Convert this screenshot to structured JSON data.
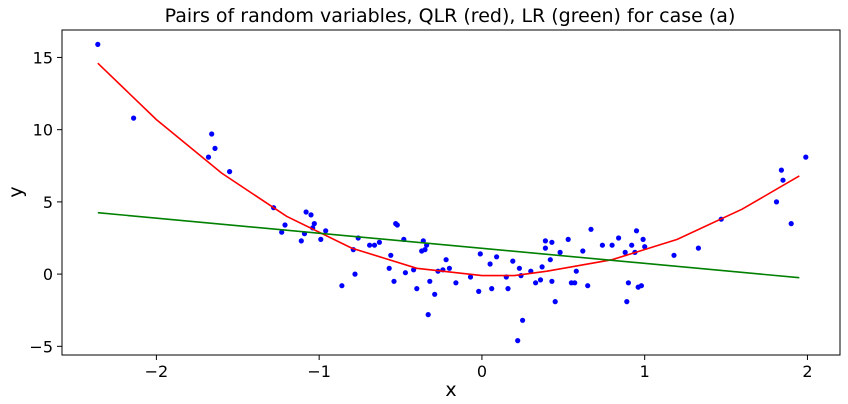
{
  "chart_data": {
    "type": "scatter",
    "title": "Pairs of random variables, QLR (red), LR (green) for case (a)",
    "xlabel": "x",
    "ylabel": "y",
    "xlim": [
      -2.58,
      2.2
    ],
    "ylim": [
      -5.6,
      16.9
    ],
    "xticks": [
      -2,
      -1,
      0,
      1,
      2
    ],
    "xtick_labels": [
      "−2",
      "−1",
      "0",
      "1",
      "2"
    ],
    "yticks": [
      -5,
      0,
      5,
      10,
      15
    ],
    "ytick_labels": [
      "−5",
      "0",
      "5",
      "10",
      "15"
    ],
    "grid": false,
    "colors": {
      "points": "#0000ff",
      "qlr": "#ff0000",
      "lr": "#008000"
    },
    "series": [
      {
        "type": "scatter",
        "x": [
          -2.36,
          -2.14,
          -1.66,
          -1.64,
          -1.68,
          -1.55,
          -1.28,
          -1.23,
          -1.21,
          -1.11,
          -1.09,
          -1.08,
          -1.04,
          -1.05,
          -1.03,
          -0.99,
          -0.96,
          -0.86,
          -0.79,
          -0.78,
          -0.76,
          -0.69,
          -0.66,
          -0.63,
          -0.57,
          -0.56,
          -0.54,
          -0.53,
          -0.52,
          -0.48,
          -0.47,
          -0.42,
          -0.4,
          -0.37,
          -0.36,
          -0.35,
          -0.34,
          -0.33,
          -0.32,
          -0.29,
          -0.27,
          -0.24,
          -0.22,
          -0.2,
          -0.16,
          -0.07,
          -0.02,
          -0.01,
          0.05,
          0.06,
          0.09,
          0.15,
          0.16,
          0.19,
          0.22,
          0.23,
          0.24,
          0.25,
          0.3,
          0.33,
          0.36,
          0.37,
          0.39,
          0.39,
          0.42,
          0.43,
          0.43,
          0.45,
          0.48,
          0.53,
          0.55,
          0.57,
          0.58,
          0.62,
          0.65,
          0.67,
          0.74,
          0.8,
          0.84,
          0.88,
          0.89,
          0.9,
          0.92,
          0.94,
          0.95,
          0.96,
          0.98,
          0.99,
          1.0,
          1.18,
          1.33,
          1.47,
          1.81,
          1.84,
          1.85,
          1.9,
          1.99
        ],
        "y": [
          15.9,
          10.8,
          9.7,
          8.7,
          8.1,
          7.1,
          4.6,
          2.9,
          3.4,
          2.3,
          2.8,
          4.3,
          3.2,
          4.1,
          3.5,
          2.4,
          3.0,
          -0.8,
          1.7,
          0.0,
          2.5,
          2.0,
          2.0,
          2.2,
          0.4,
          1.3,
          -0.5,
          3.5,
          3.4,
          2.4,
          0.1,
          0.3,
          -1.0,
          1.6,
          2.3,
          1.7,
          2.0,
          -2.8,
          -0.5,
          -1.4,
          0.2,
          0.3,
          1.0,
          0.4,
          -0.6,
          -0.2,
          -1.2,
          1.4,
          0.7,
          -1.0,
          1.2,
          -0.2,
          -1.0,
          0.9,
          -4.6,
          0.4,
          -0.1,
          -3.2,
          0.2,
          -0.6,
          -0.4,
          0.5,
          1.8,
          2.3,
          1.0,
          -0.5,
          2.2,
          -1.9,
          1.5,
          2.4,
          -0.6,
          -0.6,
          0.2,
          1.6,
          -0.8,
          3.1,
          2.0,
          2.0,
          2.5,
          1.5,
          -1.9,
          -0.6,
          2.0,
          1.5,
          3.0,
          -0.9,
          -0.8,
          2.4,
          1.9,
          1.3,
          1.8,
          3.8,
          5.0,
          7.2,
          6.5,
          3.5,
          8.1
        ]
      },
      {
        "type": "line",
        "x": [
          -2.36,
          -2.0,
          -1.6,
          -1.2,
          -0.8,
          -0.4,
          0.0,
          0.2,
          0.4,
          0.8,
          1.2,
          1.6,
          1.95
        ],
        "y": [
          14.6,
          10.7,
          7.0,
          4.0,
          1.8,
          0.4,
          -0.1,
          -0.1,
          0.2,
          1.0,
          2.4,
          4.5,
          6.8
        ]
      },
      {
        "type": "line",
        "x": [
          -2.36,
          1.95
        ],
        "y": [
          4.25,
          -0.25
        ]
      }
    ]
  }
}
